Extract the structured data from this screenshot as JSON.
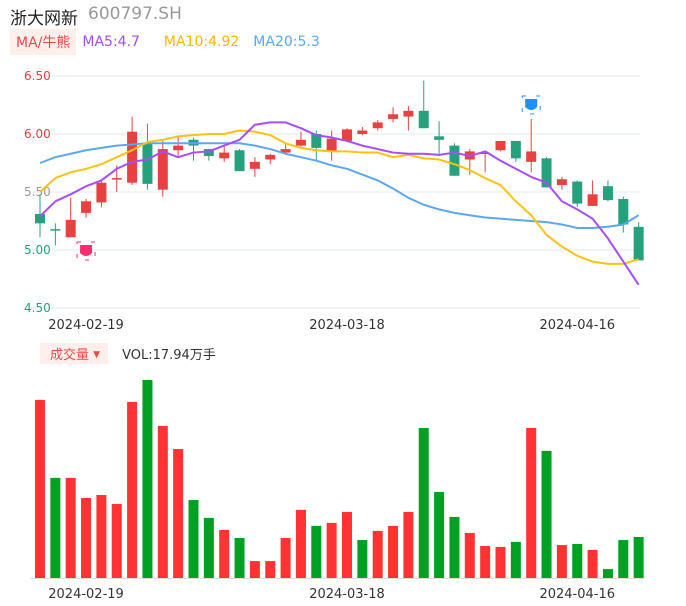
{
  "header": {
    "name": "浙大网新",
    "code": "600797.SH"
  },
  "ma_legend": {
    "button": "MA/牛熊",
    "ma5": "MA5:4.7",
    "ma10": "MA10:4.92",
    "ma20": "MA20:5.3"
  },
  "volume_legend": {
    "button": "成交量",
    "caret": "▼",
    "value": "VOL:17.94万手"
  },
  "colors": {
    "up": "#e84141",
    "down": "#26a17e",
    "vol_up": "#ff3333",
    "vol_down": "#00a123",
    "ma5": "#a64dff",
    "ma10": "#ffc20e",
    "ma20": "#5aa8f5"
  },
  "chart_data": {
    "type": "candlestick",
    "y_ticks": [
      "6.50",
      "6.00",
      "5.50",
      "5.00",
      "4.50"
    ],
    "ylim": [
      4.5,
      6.5
    ],
    "x_labels": [
      {
        "index": 3,
        "label": "2024-02-19"
      },
      {
        "index": 20,
        "label": "2024-03-18"
      },
      {
        "index": 35,
        "label": "2024-04-16"
      }
    ],
    "ohlc": [
      [
        5.31,
        5.48,
        5.11,
        5.23
      ],
      [
        5.18,
        5.23,
        5.04,
        5.17
      ],
      [
        5.11,
        5.45,
        5.11,
        5.26
      ],
      [
        5.32,
        5.44,
        5.28,
        5.42
      ],
      [
        5.41,
        5.59,
        5.37,
        5.58
      ],
      [
        5.61,
        5.73,
        5.5,
        5.62
      ],
      [
        5.58,
        6.15,
        5.56,
        6.02
      ],
      [
        5.92,
        6.09,
        5.52,
        5.57
      ],
      [
        5.52,
        5.95,
        5.46,
        5.87
      ],
      [
        5.86,
        5.98,
        5.8,
        5.9
      ],
      [
        5.95,
        5.97,
        5.77,
        5.9
      ],
      [
        5.87,
        5.87,
        5.77,
        5.81
      ],
      [
        5.79,
        5.9,
        5.76,
        5.84
      ],
      [
        5.86,
        5.87,
        5.68,
        5.68
      ],
      [
        5.7,
        5.8,
        5.63,
        5.76
      ],
      [
        5.78,
        5.83,
        5.74,
        5.82
      ],
      [
        5.84,
        5.91,
        5.82,
        5.87
      ],
      [
        5.9,
        6.02,
        5.89,
        5.95
      ],
      [
        6.0,
        6.03,
        5.78,
        5.88
      ],
      [
        5.85,
        6.03,
        5.77,
        5.96
      ],
      [
        5.94,
        6.05,
        5.93,
        6.04
      ],
      [
        6.0,
        6.06,
        5.99,
        6.03
      ],
      [
        6.05,
        6.12,
        6.03,
        6.1
      ],
      [
        6.13,
        6.23,
        6.1,
        6.17
      ],
      [
        6.15,
        6.24,
        6.03,
        6.2
      ],
      [
        6.2,
        6.46,
        6.05,
        6.05
      ],
      [
        5.98,
        6.11,
        5.83,
        5.95
      ],
      [
        5.9,
        5.92,
        5.64,
        5.64
      ],
      [
        5.78,
        5.87,
        5.65,
        5.85
      ],
      [
        5.83,
        5.85,
        5.67,
        5.84
      ],
      [
        5.86,
        5.94,
        5.85,
        5.94
      ],
      [
        5.94,
        5.94,
        5.76,
        5.79
      ],
      [
        5.76,
        6.13,
        5.67,
        5.85
      ],
      [
        5.79,
        5.8,
        5.54,
        5.54
      ],
      [
        5.56,
        5.63,
        5.52,
        5.61
      ],
      [
        5.59,
        5.6,
        5.37,
        5.4
      ],
      [
        5.38,
        5.6,
        5.38,
        5.48
      ],
      [
        5.55,
        5.6,
        5.42,
        5.43
      ],
      [
        5.44,
        5.46,
        5.15,
        5.22
      ],
      [
        5.2,
        5.24,
        4.91,
        4.91
      ]
    ],
    "ma5": [
      5.29,
      5.42,
      5.48,
      5.55,
      5.6,
      5.7,
      5.76,
      5.78,
      5.85,
      5.8,
      5.84,
      5.85,
      5.9,
      5.95,
      6.08,
      6.1,
      6.1,
      6.05,
      5.99,
      5.97,
      5.94,
      5.9,
      5.87,
      5.84,
      5.83,
      5.83,
      5.82,
      5.84,
      5.81,
      5.85,
      5.77,
      5.7,
      5.63,
      5.58,
      5.42,
      5.35,
      5.27,
      5.1,
      4.9,
      4.7
    ],
    "ma10": [
      5.5,
      5.62,
      5.67,
      5.7,
      5.74,
      5.8,
      5.86,
      5.93,
      5.95,
      5.98,
      5.99,
      6.0,
      6.0,
      6.03,
      6.02,
      5.99,
      5.92,
      5.88,
      5.86,
      5.85,
      5.85,
      5.84,
      5.84,
      5.8,
      5.82,
      5.79,
      5.78,
      5.74,
      5.69,
      5.62,
      5.56,
      5.42,
      5.3,
      5.13,
      5.03,
      4.95,
      4.9,
      4.88,
      4.88,
      4.92
    ],
    "ma20": [
      5.75,
      5.8,
      5.83,
      5.86,
      5.88,
      5.9,
      5.91,
      5.92,
      5.92,
      5.92,
      5.92,
      5.92,
      5.92,
      5.92,
      5.9,
      5.87,
      5.83,
      5.8,
      5.77,
      5.73,
      5.7,
      5.65,
      5.6,
      5.53,
      5.45,
      5.39,
      5.35,
      5.32,
      5.3,
      5.28,
      5.27,
      5.26,
      5.25,
      5.24,
      5.22,
      5.19,
      5.19,
      5.2,
      5.22,
      5.3
    ],
    "volume": [
      77.9,
      43.8,
      43.8,
      35.0,
      36.3,
      32.4,
      77.0,
      86.6,
      66.5,
      56.4,
      34.1,
      26.3,
      21.0,
      17.5,
      7.4,
      7.4,
      17.5,
      29.8,
      22.8,
      24.1,
      28.9,
      16.6,
      20.6,
      22.8,
      28.9,
      65.6,
      37.6,
      26.7,
      19.7,
      14.0,
      13.6,
      15.8,
      65.6,
      55.6,
      14.4,
      14.9,
      12.3,
      3.9,
      16.6,
      17.94
    ],
    "volume_up": [
      1,
      0,
      1,
      1,
      1,
      1,
      1,
      0,
      1,
      1,
      0,
      0,
      1,
      0,
      1,
      1,
      1,
      1,
      0,
      1,
      1,
      0,
      1,
      1,
      1,
      0,
      0,
      0,
      1,
      1,
      1,
      0,
      1,
      0,
      1,
      0,
      1,
      0,
      0,
      0
    ],
    "markers": [
      {
        "index": 3,
        "type": "bull"
      },
      {
        "index": 32,
        "type": "bear"
      }
    ]
  }
}
